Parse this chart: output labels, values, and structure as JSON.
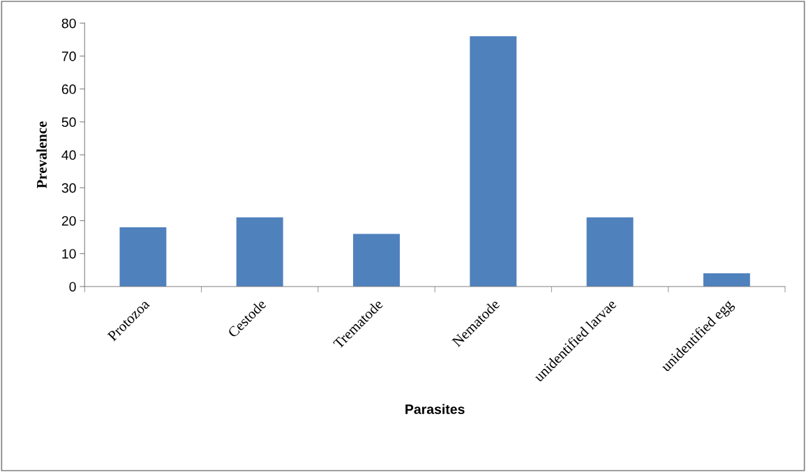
{
  "chart_data": {
    "type": "bar",
    "xlabel": "Parasites",
    "ylabel": "Prevalence",
    "categories": [
      "Protozoa",
      "Cestode",
      "Trematode",
      "Nematode",
      "unidentified larvae",
      "unidentified egg"
    ],
    "values": [
      18,
      21,
      16,
      76,
      21,
      4
    ],
    "color": "#4f81bd",
    "ylim": [
      0,
      80
    ],
    "yticks": [
      0,
      10,
      20,
      30,
      40,
      50,
      60,
      70,
      80
    ],
    "grid": false,
    "legend": false
  }
}
